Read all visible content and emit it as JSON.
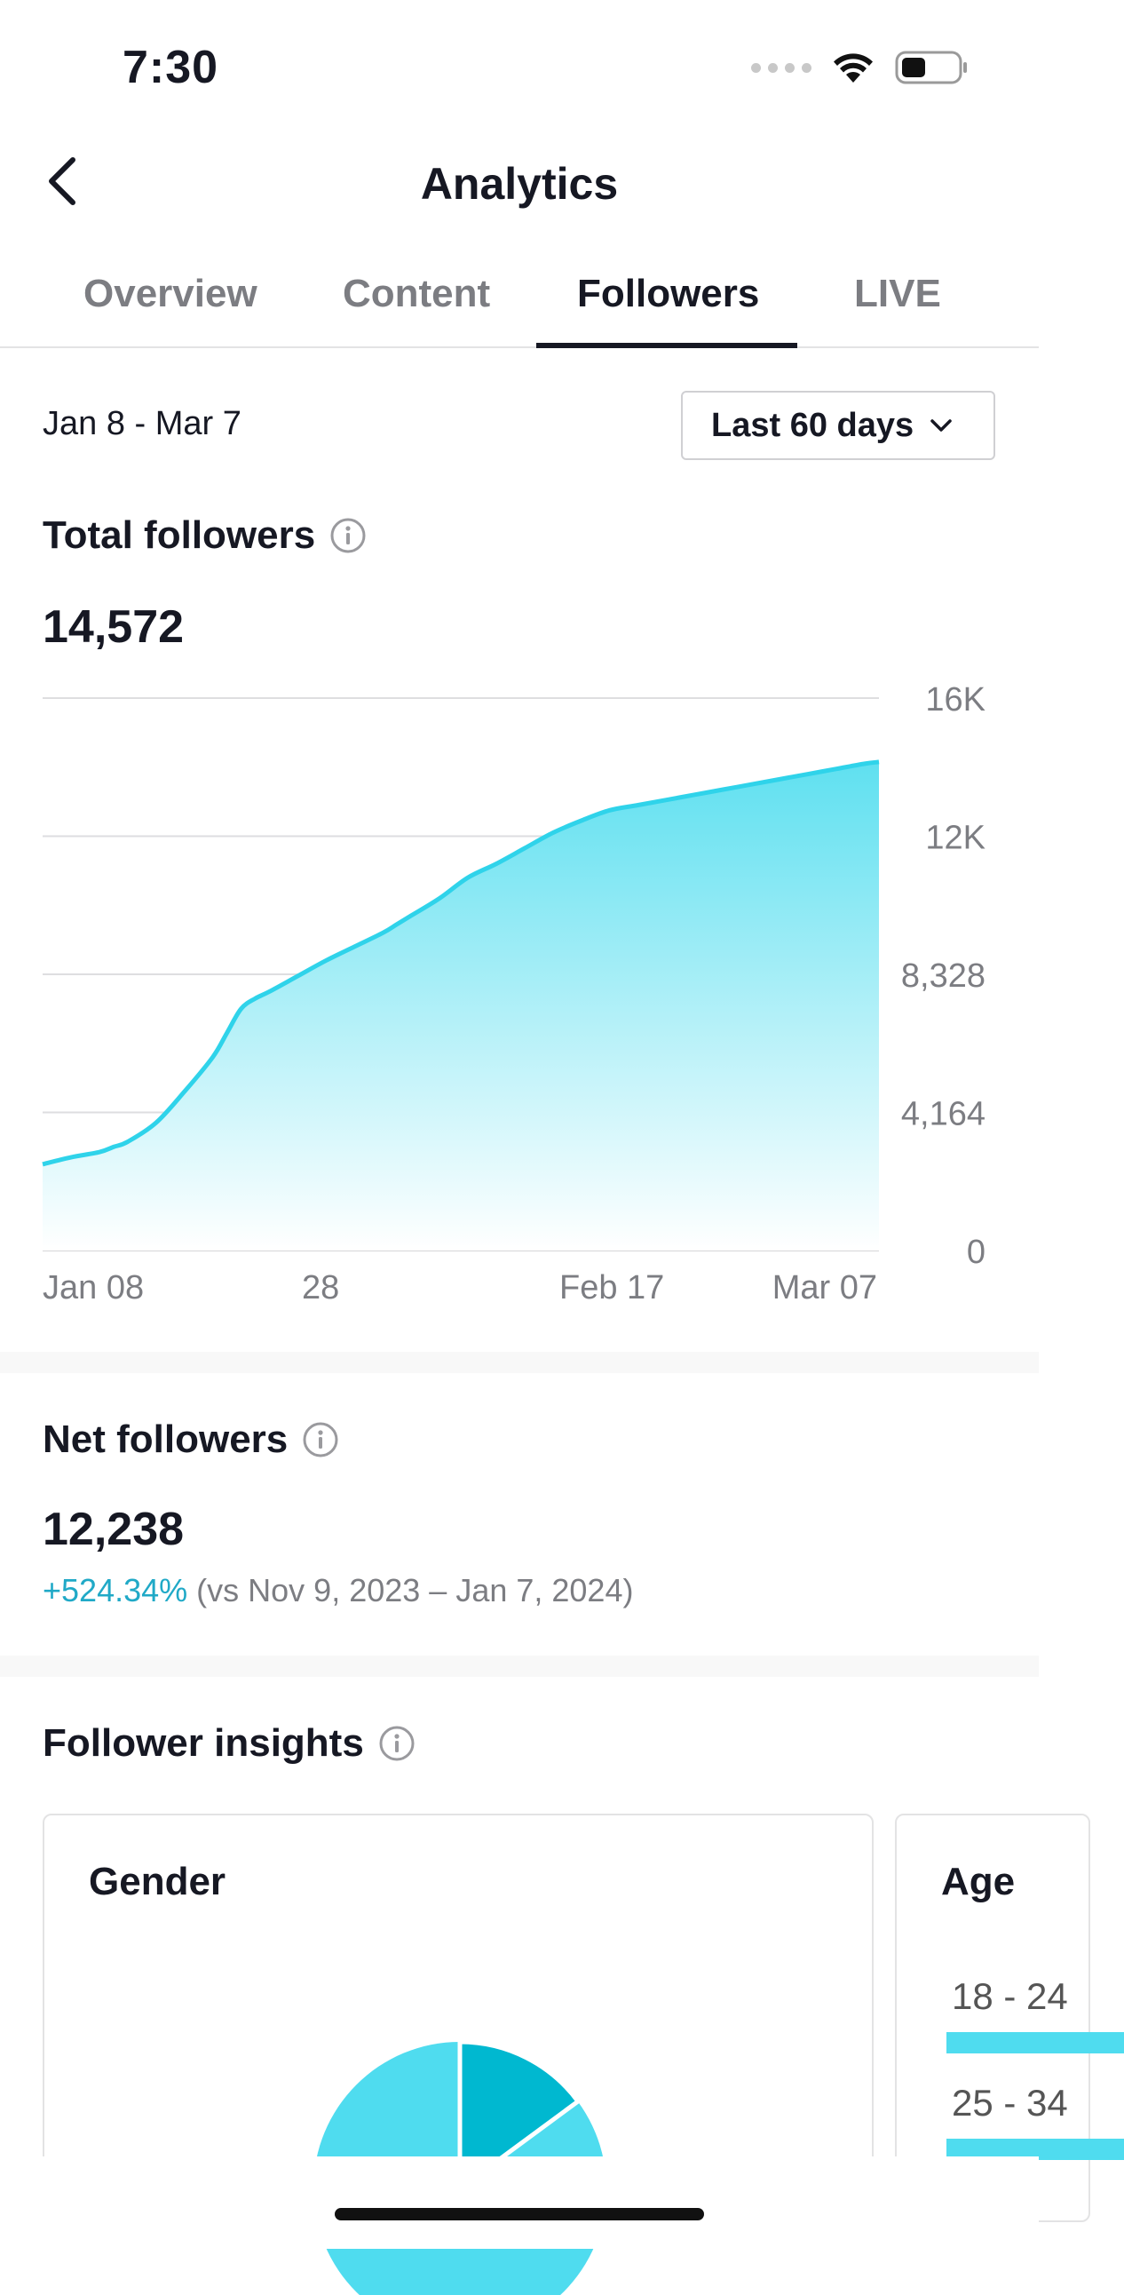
{
  "status_bar": {
    "time": "7:30"
  },
  "header": {
    "title": "Analytics"
  },
  "tabs": [
    {
      "label": "Overview"
    },
    {
      "label": "Content"
    },
    {
      "label": "Followers",
      "active": true
    },
    {
      "label": "LIVE"
    }
  ],
  "filter": {
    "date_range": "Jan 8 - Mar 7",
    "period": "Last 60 days"
  },
  "total_followers": {
    "title": "Total followers",
    "value": "14,572"
  },
  "chart_data": {
    "type": "area",
    "title": "",
    "xlabel": "",
    "ylabel": "",
    "x_tick_labels": [
      "Jan 08",
      "28",
      "Feb 17",
      "Mar 07"
    ],
    "y_tick_labels": [
      "16K",
      "12K",
      "8,328",
      "4,164",
      "0"
    ],
    "ylim": [
      0,
      16000
    ],
    "grid": true,
    "color": "#2fd3ea",
    "x": [
      0,
      2,
      4,
      5,
      6,
      8,
      10,
      12,
      13,
      14,
      15,
      16,
      18,
      20,
      22,
      24,
      25,
      26,
      28,
      30,
      32,
      34,
      36,
      38,
      40,
      42,
      44,
      46,
      48,
      50,
      52,
      54,
      56,
      58,
      59
    ],
    "values": [
      2500,
      2700,
      2850,
      3000,
      3150,
      3700,
      4600,
      5600,
      6300,
      7000,
      7300,
      7500,
      7950,
      8400,
      8800,
      9200,
      9450,
      9700,
      10200,
      10800,
      11200,
      11650,
      12100,
      12450,
      12750,
      12900,
      13050,
      13200,
      13350,
      13500,
      13650,
      13800,
      13950,
      14100,
      14150
    ]
  },
  "net_followers": {
    "title": "Net followers",
    "value": "12,238",
    "change": "+524.34%",
    "comparison": "(vs Nov 9, 2023 – Jan 7, 2024)"
  },
  "insights": {
    "title": "Follower insights",
    "gender_title": "Gender",
    "age_title": "Age",
    "age_rows": [
      {
        "label": "18 - 24"
      },
      {
        "label": "25 - 34"
      }
    ],
    "colors": {
      "primary": "#4fdcef",
      "secondary": "#00b8d0"
    }
  }
}
